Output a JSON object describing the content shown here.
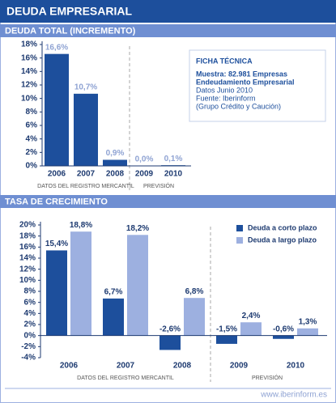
{
  "header": {
    "title": "DEUDA EMPRESARIAL"
  },
  "chart_data": [
    {
      "type": "bar",
      "title": "DEUDA TOTAL (INCREMENTO)",
      "categories": [
        "2006",
        "2007",
        "2008",
        "2009",
        "2010"
      ],
      "values": [
        16.6,
        10.7,
        0.9,
        0.0,
        0.1
      ],
      "value_labels": [
        "16,6%",
        "10,7%",
        "0,9%",
        "0,0%",
        "0,1%"
      ],
      "color": "#1d4f9c",
      "ylim": [
        0,
        18
      ],
      "yticks": [
        {
          "value": 0,
          "label": "0%"
        },
        {
          "value": 2,
          "label": "2%"
        },
        {
          "value": 4,
          "label": "4%"
        },
        {
          "value": 6,
          "label": "6%"
        },
        {
          "value": 8,
          "label": "8%"
        },
        {
          "value": 10,
          "label": "10%"
        },
        {
          "value": 12,
          "label": "12%"
        },
        {
          "value": 14,
          "label": "14%"
        },
        {
          "value": 16,
          "label": "16%"
        },
        {
          "value": 18,
          "label": "18%"
        }
      ],
      "annotations": [
        "DATOS DEL REGISTRO MERCANTIL",
        "PREVISIÓN"
      ]
    },
    {
      "type": "bar",
      "title": "TASA DE CRECIMIENTO",
      "categories": [
        "2006",
        "2007",
        "2008",
        "2009",
        "2010"
      ],
      "series": [
        {
          "name": "Deuda a corto plazo",
          "color": "#1d4f9c",
          "values": [
            15.4,
            6.7,
            -2.6,
            -1.5,
            -0.6
          ],
          "value_labels": [
            "15,4%",
            "6,7%",
            "-2,6%",
            "-1,5%",
            "-0,6%"
          ]
        },
        {
          "name": "Deuda a largo plazo",
          "color": "#9db0e0",
          "values": [
            18.8,
            18.2,
            6.8,
            2.4,
            1.3
          ],
          "value_labels": [
            "18,8%",
            "18,2%",
            "6,8%",
            "2,4%",
            "1,3%"
          ]
        }
      ],
      "ylim": [
        -4,
        20
      ],
      "yticks": [
        {
          "value": -4,
          "label": "-4%"
        },
        {
          "value": -2,
          "label": "-2%"
        },
        {
          "value": 0,
          "label": "0%"
        },
        {
          "value": 2,
          "label": "2%"
        },
        {
          "value": 4,
          "label": "4%"
        },
        {
          "value": 6,
          "label": "6%"
        },
        {
          "value": 8,
          "label": "8%"
        },
        {
          "value": 10,
          "label": "10%"
        },
        {
          "value": 12,
          "label": "12%"
        },
        {
          "value": 14,
          "label": "14%"
        },
        {
          "value": 16,
          "label": "16%"
        },
        {
          "value": 18,
          "label": "18%"
        },
        {
          "value": 20,
          "label": "20%"
        }
      ],
      "legend": "upper right",
      "annotations": [
        "DATOS DEL REGISTRO MERCANTIL",
        "PREVISIÓN"
      ]
    }
  ],
  "ficha_tecnica": {
    "title": "FICHA TÉCNICA",
    "lines": [
      "Muestra: 82.981 Empresas",
      "Endeudamiento Empresarial",
      "Datos Junio 2010",
      "Fuente: Iberinform",
      "(Grupo Crédito y Caución)"
    ]
  },
  "footer": "www.iberinform.es"
}
